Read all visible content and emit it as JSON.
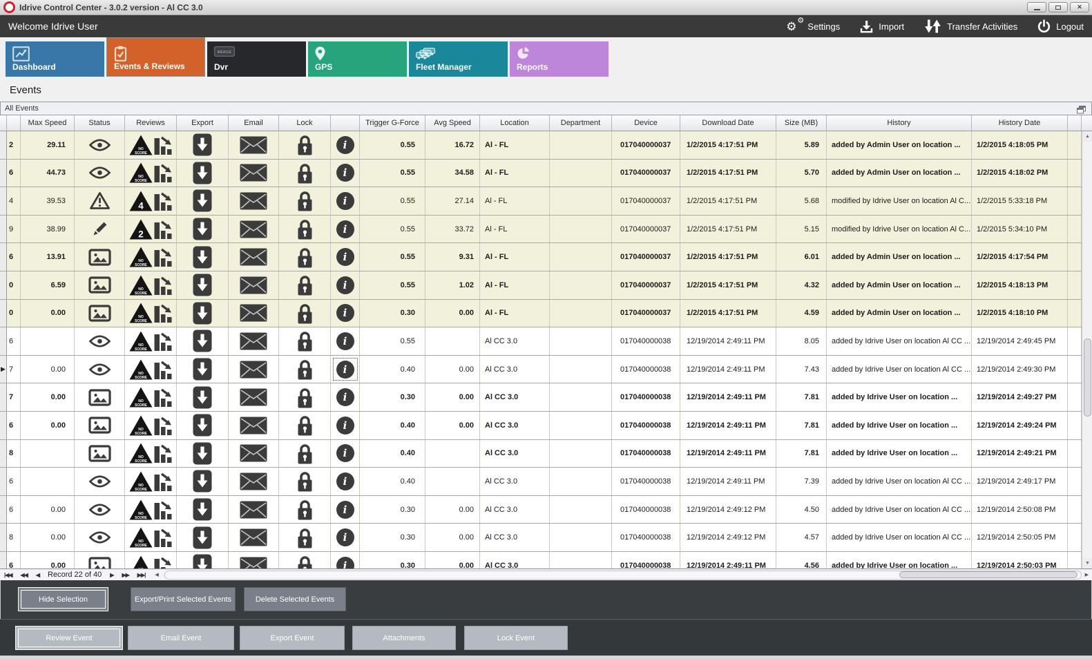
{
  "window": {
    "title": "Idrive Control Center - 3.0.2 version - Al CC 3.0",
    "controls": [
      "minimize",
      "maximize",
      "close"
    ]
  },
  "menubar": {
    "welcome": "Welcome Idrive User",
    "actions": [
      {
        "id": "settings",
        "label": "Settings",
        "icon": "gears-icon"
      },
      {
        "id": "import",
        "label": "Import",
        "icon": "import-icon"
      },
      {
        "id": "transfer",
        "label": "Transfer Activities",
        "icon": "transfer-arrows-icon"
      },
      {
        "id": "logout",
        "label": "Logout",
        "icon": "power-icon"
      }
    ]
  },
  "tabs": [
    {
      "id": "dashboard",
      "label": "Dashboard",
      "color": "#3a77a9",
      "icon": "chart-icon",
      "selected": false
    },
    {
      "id": "events",
      "label": "Events & Reviews",
      "color": "#d2622a",
      "icon": "clipboard-check-icon",
      "selected": true
    },
    {
      "id": "dvr",
      "label": "Dvr",
      "color": "#26282c",
      "icon": "dvr-device-icon",
      "selected": false
    },
    {
      "id": "gps",
      "label": "GPS",
      "color": "#28a47d",
      "icon": "map-pin-icon",
      "selected": false
    },
    {
      "id": "fleet",
      "label": "Fleet Manager",
      "color": "#1b879b",
      "icon": "vehicles-icon",
      "selected": false
    },
    {
      "id": "reports",
      "label": "Reports",
      "color": "#bd86da",
      "icon": "pie-chart-icon",
      "selected": false
    }
  ],
  "page": {
    "heading": "Events",
    "panel_title": "All Events"
  },
  "grid": {
    "columns": [
      {
        "key": "indicator",
        "label": ""
      },
      {
        "key": "clip",
        "label": ""
      },
      {
        "key": "max_speed",
        "label": "Max Speed"
      },
      {
        "key": "status",
        "label": "Status"
      },
      {
        "key": "reviews",
        "label": "Reviews"
      },
      {
        "key": "export",
        "label": "Export"
      },
      {
        "key": "email",
        "label": "Email"
      },
      {
        "key": "lock",
        "label": "Lock"
      },
      {
        "key": "info",
        "label": ""
      },
      {
        "key": "trigger",
        "label": "Trigger G-Force"
      },
      {
        "key": "avg",
        "label": "Avg Speed"
      },
      {
        "key": "location",
        "label": "Location"
      },
      {
        "key": "department",
        "label": "Department"
      },
      {
        "key": "device",
        "label": "Device"
      },
      {
        "key": "download",
        "label": "Download Date"
      },
      {
        "key": "size",
        "label": "Size (MB)"
      },
      {
        "key": "history",
        "label": "History"
      },
      {
        "key": "history_date",
        "label": "History Date"
      },
      {
        "key": "filler",
        "label": ""
      }
    ],
    "rows": [
      {
        "clip": "2",
        "max_speed": "29.11",
        "status": "eye",
        "score": "NO SCORE",
        "trigger": "0.55",
        "avg": "16.72",
        "location": "Al - FL",
        "department": "",
        "device": "017040000037",
        "download": "1/2/2015 4:17:51 PM",
        "size": "5.89",
        "history": "added by Admin User on location ...",
        "history_date": "1/2/2015 4:18:05 PM",
        "bold": true,
        "highlight": true,
        "current": false,
        "info_focused": false
      },
      {
        "clip": "6",
        "max_speed": "44.73",
        "status": "eye",
        "score": "NO SCORE",
        "trigger": "0.55",
        "avg": "34.58",
        "location": "Al - FL",
        "department": "",
        "device": "017040000037",
        "download": "1/2/2015 4:17:51 PM",
        "size": "5.70",
        "history": "added by Admin User on location ...",
        "history_date": "1/2/2015 4:18:02 PM",
        "bold": true,
        "highlight": true,
        "current": false,
        "info_focused": false
      },
      {
        "clip": "4",
        "max_speed": "39.53",
        "status": "warning",
        "score": "4",
        "trigger": "0.55",
        "avg": "27.14",
        "location": "Al - FL",
        "department": "",
        "device": "017040000037",
        "download": "1/2/2015 4:17:51 PM",
        "size": "5.68",
        "history": "modified by Idrive User on location Al C...",
        "history_date": "1/2/2015 5:33:18 PM",
        "bold": false,
        "highlight": true,
        "current": false,
        "info_focused": false
      },
      {
        "clip": "9",
        "max_speed": "38.99",
        "status": "pencil",
        "score": "2",
        "trigger": "0.55",
        "avg": "33.72",
        "location": "Al - FL",
        "department": "",
        "device": "017040000037",
        "download": "1/2/2015 4:17:51 PM",
        "size": "5.15",
        "history": "modified by Idrive User on location Al C...",
        "history_date": "1/2/2015 5:34:10 PM",
        "bold": false,
        "highlight": true,
        "current": false,
        "info_focused": false
      },
      {
        "clip": "6",
        "max_speed": "13.91",
        "status": "picture",
        "score": "NO SCORE",
        "trigger": "0.55",
        "avg": "9.31",
        "location": "Al - FL",
        "department": "",
        "device": "017040000037",
        "download": "1/2/2015 4:17:51 PM",
        "size": "6.01",
        "history": "added by Admin User on location ...",
        "history_date": "1/2/2015 4:17:54 PM",
        "bold": true,
        "highlight": true,
        "current": false,
        "info_focused": false
      },
      {
        "clip": "0",
        "max_speed": "6.59",
        "status": "picture",
        "score": "NO SCORE",
        "trigger": "0.55",
        "avg": "1.02",
        "location": "Al - FL",
        "department": "",
        "device": "017040000037",
        "download": "1/2/2015 4:17:51 PM",
        "size": "4.32",
        "history": "added by Admin User on location ...",
        "history_date": "1/2/2015 4:18:13 PM",
        "bold": true,
        "highlight": true,
        "current": false,
        "info_focused": false
      },
      {
        "clip": "0",
        "max_speed": "0.00",
        "status": "picture",
        "score": "NO SCORE",
        "trigger": "0.30",
        "avg": "0.00",
        "location": "Al - FL",
        "department": "",
        "device": "017040000037",
        "download": "1/2/2015 4:17:51 PM",
        "size": "4.59",
        "history": "added by Admin User on location ...",
        "history_date": "1/2/2015 4:18:10 PM",
        "bold": true,
        "highlight": true,
        "current": false,
        "info_focused": false
      },
      {
        "clip": "6",
        "max_speed": "",
        "status": "eye",
        "score": "NO SCORE",
        "trigger": "0.55",
        "avg": "",
        "location": "Al CC 3.0",
        "department": "",
        "device": "017040000038",
        "download": "12/19/2014 2:49:11 PM",
        "size": "8.05",
        "history": "added by Idrive User on location Al CC ...",
        "history_date": "12/19/2014 2:49:45 PM",
        "bold": false,
        "highlight": false,
        "current": false,
        "info_focused": false
      },
      {
        "clip": "7",
        "max_speed": "0.00",
        "status": "eye",
        "score": "NO SCORE",
        "trigger": "0.40",
        "avg": "0.00",
        "location": "Al CC 3.0",
        "department": "",
        "device": "017040000038",
        "download": "12/19/2014 2:49:11 PM",
        "size": "7.43",
        "history": "added by Idrive User on location Al CC ...",
        "history_date": "12/19/2014 2:49:30 PM",
        "bold": false,
        "highlight": false,
        "current": true,
        "info_focused": true
      },
      {
        "clip": "7",
        "max_speed": "0.00",
        "status": "picture",
        "score": "NO SCORE",
        "trigger": "0.30",
        "avg": "0.00",
        "location": "Al CC 3.0",
        "department": "",
        "device": "017040000038",
        "download": "12/19/2014 2:49:11 PM",
        "size": "7.81",
        "history": "added by Idrive User on location ...",
        "history_date": "12/19/2014 2:49:27 PM",
        "bold": true,
        "highlight": false,
        "current": false,
        "info_focused": false
      },
      {
        "clip": "6",
        "max_speed": "0.00",
        "status": "picture",
        "score": "NO SCORE",
        "trigger": "0.40",
        "avg": "0.00",
        "location": "Al CC 3.0",
        "department": "",
        "device": "017040000038",
        "download": "12/19/2014 2:49:11 PM",
        "size": "7.81",
        "history": "added by Idrive User on location ...",
        "history_date": "12/19/2014 2:49:24 PM",
        "bold": true,
        "highlight": false,
        "current": false,
        "info_focused": false
      },
      {
        "clip": "8",
        "max_speed": "",
        "status": "picture",
        "score": "NO SCORE",
        "trigger": "0.40",
        "avg": "",
        "location": "Al CC 3.0",
        "department": "",
        "device": "017040000038",
        "download": "12/19/2014 2:49:11 PM",
        "size": "7.81",
        "history": "added by Idrive User on location ...",
        "history_date": "12/19/2014 2:49:21 PM",
        "bold": true,
        "highlight": false,
        "current": false,
        "info_focused": false
      },
      {
        "clip": "6",
        "max_speed": "",
        "status": "eye",
        "score": "NO SCORE",
        "trigger": "0.40",
        "avg": "",
        "location": "Al CC 3.0",
        "department": "",
        "device": "017040000038",
        "download": "12/19/2014 2:49:11 PM",
        "size": "7.39",
        "history": "added by Idrive User on location Al CC ...",
        "history_date": "12/19/2014 2:49:17 PM",
        "bold": false,
        "highlight": false,
        "current": false,
        "info_focused": false
      },
      {
        "clip": "6",
        "max_speed": "0.00",
        "status": "eye",
        "score": "NO SCORE",
        "trigger": "0.30",
        "avg": "0.00",
        "location": "Al CC 3.0",
        "department": "",
        "device": "017040000038",
        "download": "12/19/2014 2:49:12 PM",
        "size": "4.50",
        "history": "added by Idrive User on location Al CC ...",
        "history_date": "12/19/2014 2:50:08 PM",
        "bold": false,
        "highlight": false,
        "current": false,
        "info_focused": false
      },
      {
        "clip": "8",
        "max_speed": "0.00",
        "status": "eye",
        "score": "NO SCORE",
        "trigger": "0.30",
        "avg": "0.00",
        "location": "Al CC 3.0",
        "department": "",
        "device": "017040000038",
        "download": "12/19/2014 2:49:12 PM",
        "size": "4.57",
        "history": "added by Idrive User on location Al CC ...",
        "history_date": "12/19/2014 2:50:05 PM",
        "bold": false,
        "highlight": false,
        "current": false,
        "info_focused": false
      },
      {
        "clip": "6",
        "max_speed": "0.00",
        "status": "picture",
        "score": "NO SCORE",
        "trigger": "0.30",
        "avg": "0.00",
        "location": "Al CC 3.0",
        "department": "",
        "device": "017040000038",
        "download": "12/19/2014 2:49:11 PM",
        "size": "4.56",
        "history": "added by Idrive User on location ...",
        "history_date": "12/19/2014 2:50:03 PM",
        "bold": true,
        "highlight": false,
        "current": false,
        "info_focused": false
      }
    ]
  },
  "pager": {
    "record_label": "Record 22 of 40",
    "buttons": [
      "first",
      "prev-page",
      "prev",
      "next",
      "next-page",
      "last"
    ]
  },
  "action_bar": {
    "buttons": [
      "Hide Selection",
      "Export/Print Selected Events",
      "Delete Selected  Events"
    ],
    "focused_index": 0
  },
  "event_bar": {
    "buttons": [
      "Review Event",
      "Email Event",
      "Export Event",
      "Attachments",
      "Lock Event"
    ],
    "focused_index": 0
  },
  "colors": {
    "menubar": "#3a3a3a",
    "highlight_row": "#f1f1dc",
    "icon": "#3b3b3b",
    "dark_button": "#7b7f89",
    "light_button": "#b5bac2"
  }
}
